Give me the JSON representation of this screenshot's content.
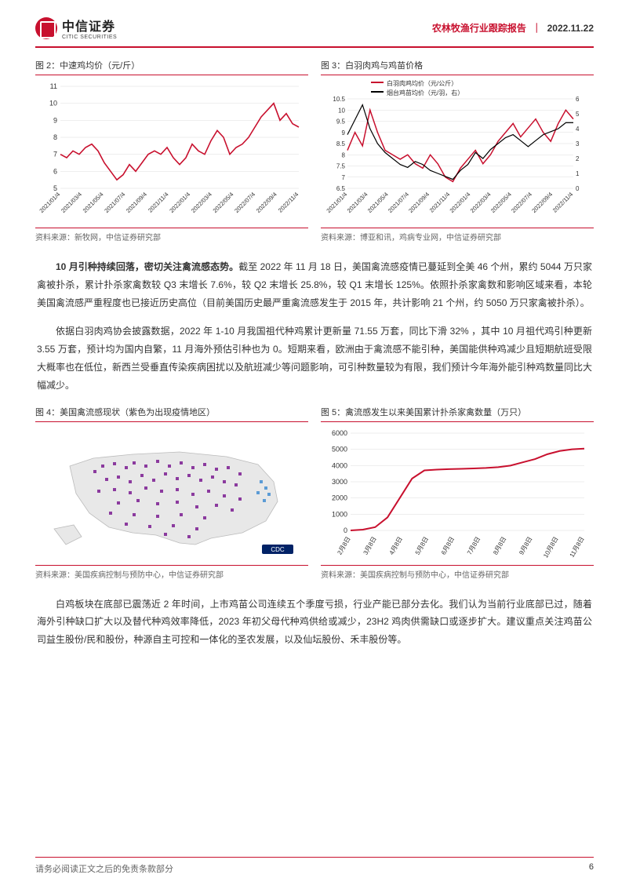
{
  "header": {
    "logo_cn": "中信证券",
    "logo_en": "CITIC SECURITIES",
    "report_type": "农林牧渔行业跟踪报告",
    "date": "2022.11.22"
  },
  "chart2": {
    "title": "图 2：中速鸡均价（元/斤）",
    "type": "line",
    "line_color": "#c8102e",
    "line_width": 1.6,
    "background_color": "#ffffff",
    "ylim": [
      5,
      11
    ],
    "yticks": [
      5,
      6,
      7,
      8,
      9,
      10,
      11
    ],
    "x_labels": [
      "2021/01/4",
      "2021/03/4",
      "2021/05/4",
      "2021/07/4",
      "2021/09/4",
      "2021/11/4",
      "2022/01/4",
      "2022/03/4",
      "2022/05/4",
      "2022/07/4",
      "2022/09/4",
      "2022/11/4"
    ],
    "data": [
      7.0,
      6.8,
      7.2,
      7.0,
      7.4,
      7.6,
      7.2,
      6.5,
      6.0,
      5.5,
      5.8,
      6.4,
      6.0,
      6.5,
      7.0,
      7.2,
      7.0,
      7.4,
      6.8,
      6.4,
      6.8,
      7.6,
      7.2,
      7.0,
      7.8,
      8.4,
      8.0,
      7.0,
      7.4,
      7.6,
      8.0,
      8.6,
      9.2,
      9.6,
      10.0,
      9.0,
      9.4,
      8.8,
      8.6
    ],
    "grid_color": "#dddddd",
    "source": "资料来源：新牧网，中信证券研究部"
  },
  "chart3": {
    "title": "图 3：白羽肉鸡与鸡苗价格",
    "type": "line",
    "background_color": "#ffffff",
    "series": [
      {
        "name": "白羽肉鸡均价（元/公斤）",
        "color": "#c8102e",
        "axis": "left",
        "line_width": 1.5,
        "data": [
          8.2,
          9.0,
          8.4,
          10.0,
          9.0,
          8.2,
          8.0,
          7.8,
          8.0,
          7.6,
          7.4,
          8.0,
          7.6,
          7.0,
          6.8,
          7.4,
          7.8,
          8.2,
          7.6,
          8.0,
          8.6,
          9.0,
          9.4,
          8.8,
          9.2,
          9.6,
          9.0,
          8.6,
          9.4,
          10.0,
          9.6
        ]
      },
      {
        "name": "烟台鸡苗均价（元/羽，右）",
        "color": "#000000",
        "axis": "right",
        "line_width": 1.2,
        "data": [
          3.6,
          4.6,
          5.6,
          4.0,
          3.0,
          2.4,
          2.0,
          1.6,
          1.4,
          1.8,
          1.6,
          1.2,
          1.0,
          0.8,
          0.6,
          1.2,
          1.6,
          2.4,
          2.0,
          2.6,
          3.0,
          3.4,
          3.6,
          3.2,
          2.8,
          3.2,
          3.6,
          3.8,
          4.0,
          4.4,
          4.4
        ]
      }
    ],
    "left_ylim": [
      6.5,
      10.5
    ],
    "left_yticks": [
      6.5,
      7.0,
      7.5,
      8.0,
      8.5,
      9.0,
      9.5,
      10.0,
      10.5
    ],
    "right_ylim": [
      0,
      6
    ],
    "right_yticks": [
      0,
      1,
      2,
      3,
      4,
      5,
      6
    ],
    "x_labels": [
      "2021/01/4",
      "2021/03/4",
      "2021/05/4",
      "2021/07/4",
      "2021/09/4",
      "2021/11/4",
      "2022/01/4",
      "2022/03/4",
      "2022/05/4",
      "2022/07/4",
      "2022/09/4",
      "2022/11/4"
    ],
    "grid_color": "#dddddd",
    "source": "资料来源：博亚和讯，鸡病专业网，中信证券研究部"
  },
  "para1": {
    "bold": "10 月引种持续回落，密切关注禽流感态势。",
    "text": "截至 2022 年 11 月 18 日，美国禽流感疫情已蔓延到全美 46 个州，累约 5044 万只家禽被扑杀，累计扑杀家禽数较 Q3 末增长 7.6%，较 Q2 末增长 25.8%，较 Q1 末增长 125%。依照扑杀家禽数和影响区域来看，本轮美国禽流感严重程度也已接近历史高位（目前美国历史最严重禽流感发生于 2015 年，共计影响 21 个州，约 5050 万只家禽被扑杀）。"
  },
  "para2": "依据白羽肉鸡协会披露数据，2022 年 1-10 月我国祖代种鸡累计更新量 71.55 万套，同比下滑 32% ，其中 10 月祖代鸡引种更新 3.55 万套，预计均为国内自繁，11 月海外预估引种也为 0。短期来看，欧洲由于禽流感不能引种，美国能供种鸡减少且短期航班受限大概率也在低位，新西兰受垂直传染疾病困扰以及航班减少等问题影响，可引种数量较为有限，我们预计今年海外能引种鸡数量同比大幅减少。",
  "chart4": {
    "title": "图 4：美国禽流感现状（紫色为出现疫情地区）",
    "type": "map",
    "outbreak_color": "#8b3a9e",
    "no_outbreak_color": "#5b9bd5",
    "land_color": "#e8e8e8",
    "source": "资料来源：美国疾病控制与预防中心，中信证券研究部"
  },
  "chart5": {
    "title": "图 5：禽流感发生以来美国累计扑杀家禽数量（万只）",
    "type": "line",
    "line_color": "#c8102e",
    "line_width": 2.0,
    "background_color": "#ffffff",
    "ylim": [
      0,
      6000
    ],
    "yticks": [
      0,
      1000,
      2000,
      3000,
      4000,
      5000,
      6000
    ],
    "x_labels": [
      "2月8日",
      "3月8日",
      "4月8日",
      "5月8日",
      "6月8日",
      "7月8日",
      "8月8日",
      "9月8日",
      "10月8日",
      "11月8日"
    ],
    "data": [
      0,
      50,
      200,
      800,
      2000,
      3200,
      3700,
      3750,
      3780,
      3800,
      3820,
      3850,
      3900,
      4000,
      4200,
      4400,
      4700,
      4900,
      5000,
      5044
    ],
    "grid_color": "#dddddd",
    "source": "资料来源：美国疾病控制与预防中心，中信证券研究部"
  },
  "para3": "白鸡板块在底部已震荡近 2 年时间，上市鸡苗公司连续五个季度亏损，行业产能已部分去化。我们认为当前行业底部已过，随着海外引种缺口扩大以及替代种鸡效率降低，2023 年初父母代种鸡供给或减少，23H2 鸡肉供需缺口或逐步扩大。建议重点关注鸡苗公司益生股份/民和股份，种源自主可控和一体化的圣农发展，以及仙坛股份、禾丰股份等。",
  "footer": {
    "disclaimer": "请务必阅读正文之后的免责条款部分",
    "page": "6"
  }
}
